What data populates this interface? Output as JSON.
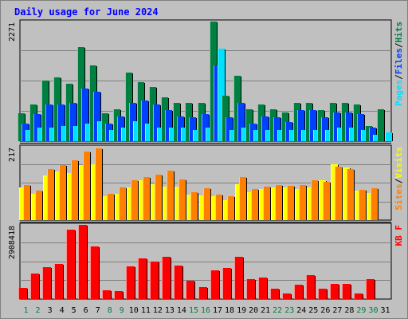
{
  "window": {
    "title": "Daily usage for June 2024"
  },
  "colors": {
    "background": "#c0c0c0",
    "pane": "#c0c0c0",
    "hits": "#008040",
    "files": "#0040ff",
    "pages": "#00e0ff",
    "visits": "#ffff00",
    "sites": "#ff8000",
    "kbytes": "#ff0000",
    "grid": "#808080",
    "day_weekday": "#000000",
    "day_weekend": "#008040",
    "separator": "#000000"
  },
  "chart_data": [
    {
      "type": "bar",
      "title": "Daily usage for June 2024",
      "ylabel_max": "2271",
      "legend": [
        {
          "text": "Pages",
          "color": "#00e0ff"
        },
        {
          "text": "/",
          "color": "#000000"
        },
        {
          "text": "Files",
          "color": "#0040ff"
        },
        {
          "text": "/",
          "color": "#000000"
        },
        {
          "text": "Hits",
          "color": "#008040"
        }
      ],
      "ylim": [
        0,
        2271
      ],
      "categories": [
        "1",
        "2",
        "3",
        "4",
        "5",
        "6",
        "7",
        "8",
        "9",
        "10",
        "11",
        "12",
        "13",
        "14",
        "15",
        "16",
        "17",
        "18",
        "19",
        "20",
        "21",
        "22",
        "23",
        "24",
        "25",
        "26",
        "27",
        "28",
        "29",
        "30",
        "31"
      ],
      "series": [
        {
          "name": "Hits",
          "color": "#008040",
          "values": [
            534,
            690,
            1155,
            1206,
            1086,
            1783,
            1433,
            534,
            613,
            1296,
            1117,
            1031,
            827,
            733,
            733,
            733,
            2271,
            862,
            1237,
            613,
            690,
            613,
            552,
            733,
            733,
            586,
            733,
            733,
            690,
            293,
            613
          ]
        },
        {
          "name": "Files",
          "color": "#0040ff",
          "values": [
            336,
            517,
            690,
            690,
            733,
            1000,
            940,
            336,
            466,
            733,
            776,
            690,
            586,
            466,
            448,
            517,
            1440,
            448,
            733,
            336,
            466,
            448,
            368,
            586,
            586,
            448,
            552,
            552,
            517,
            250,
            0
          ]
        },
        {
          "name": "Pages",
          "color": "#00e0ff",
          "values": [
            207,
            250,
            250,
            293,
            293,
            336,
            379,
            207,
            250,
            379,
            336,
            250,
            250,
            250,
            207,
            250,
            1760,
            207,
            250,
            207,
            207,
            207,
            207,
            207,
            207,
            207,
            250,
            250,
            207,
            121,
            168
          ]
        }
      ]
    },
    {
      "type": "bar",
      "ylabel_max": "217",
      "legend": [
        {
          "text": "Sites",
          "color": "#ff8000"
        },
        {
          "text": "/",
          "color": "#000000"
        },
        {
          "text": "Visits",
          "color": "#ffff00"
        }
      ],
      "ylim": [
        0,
        217
      ],
      "categories": [
        "1",
        "2",
        "3",
        "4",
        "5",
        "6",
        "7",
        "8",
        "9",
        "10",
        "11",
        "12",
        "13",
        "14",
        "15",
        "16",
        "17",
        "18",
        "19",
        "20",
        "21",
        "22",
        "23",
        "24",
        "25",
        "26",
        "27",
        "28",
        "29",
        "30",
        "31"
      ],
      "series": [
        {
          "name": "Visits",
          "color": "#ffff00",
          "values": [
            97,
            78,
            133,
            143,
            139,
            162,
            165,
            70,
            78,
            96,
            117,
            105,
            100,
            98,
            75,
            72,
            70,
            60,
            106,
            82,
            93,
            96,
            97,
            92,
            96,
            119,
            164,
            155,
            88,
            80,
            0
          ]
        },
        {
          "name": "Sites",
          "color": "#ff8000",
          "values": [
            104,
            88,
            152,
            162,
            178,
            202,
            213,
            79,
            97,
            117,
            128,
            135,
            147,
            120,
            82,
            95,
            76,
            70,
            127,
            92,
            99,
            104,
            102,
            104,
            117,
            114,
            157,
            150,
            89,
            94,
            0
          ]
        }
      ]
    },
    {
      "type": "bar",
      "ylabel_max": "2908418",
      "legend": [
        {
          "text": "KB F",
          "color": "#ff0000"
        }
      ],
      "ylim": [
        0,
        2908418
      ],
      "categories": [
        "1",
        "2",
        "3",
        "4",
        "5",
        "6",
        "7",
        "8",
        "9",
        "10",
        "11",
        "12",
        "13",
        "14",
        "15",
        "16",
        "17",
        "18",
        "19",
        "20",
        "21",
        "22",
        "23",
        "24",
        "25",
        "26",
        "27",
        "28",
        "29",
        "30",
        "31"
      ],
      "series": [
        {
          "name": "KB F",
          "color": "#ff0000",
          "values": [
            437000,
            1010000,
            1241000,
            1375000,
            2724000,
            2908418,
            2059000,
            355000,
            299000,
            1290000,
            1594000,
            1460000,
            1652000,
            1325000,
            733000,
            484000,
            1121000,
            1210000,
            1667000,
            789000,
            844000,
            419000,
            212000,
            551000,
            931000,
            393000,
            607000,
            607000,
            222000,
            767000,
            0
          ]
        }
      ]
    }
  ],
  "days": [
    "1",
    "2",
    "3",
    "4",
    "5",
    "6",
    "7",
    "8",
    "9",
    "10",
    "11",
    "12",
    "13",
    "14",
    "15",
    "16",
    "17",
    "18",
    "19",
    "20",
    "21",
    "22",
    "23",
    "24",
    "25",
    "26",
    "27",
    "28",
    "29",
    "30",
    "31"
  ],
  "weekend_days": [
    1,
    2,
    8,
    9,
    15,
    16,
    22,
    23,
    29,
    30
  ]
}
